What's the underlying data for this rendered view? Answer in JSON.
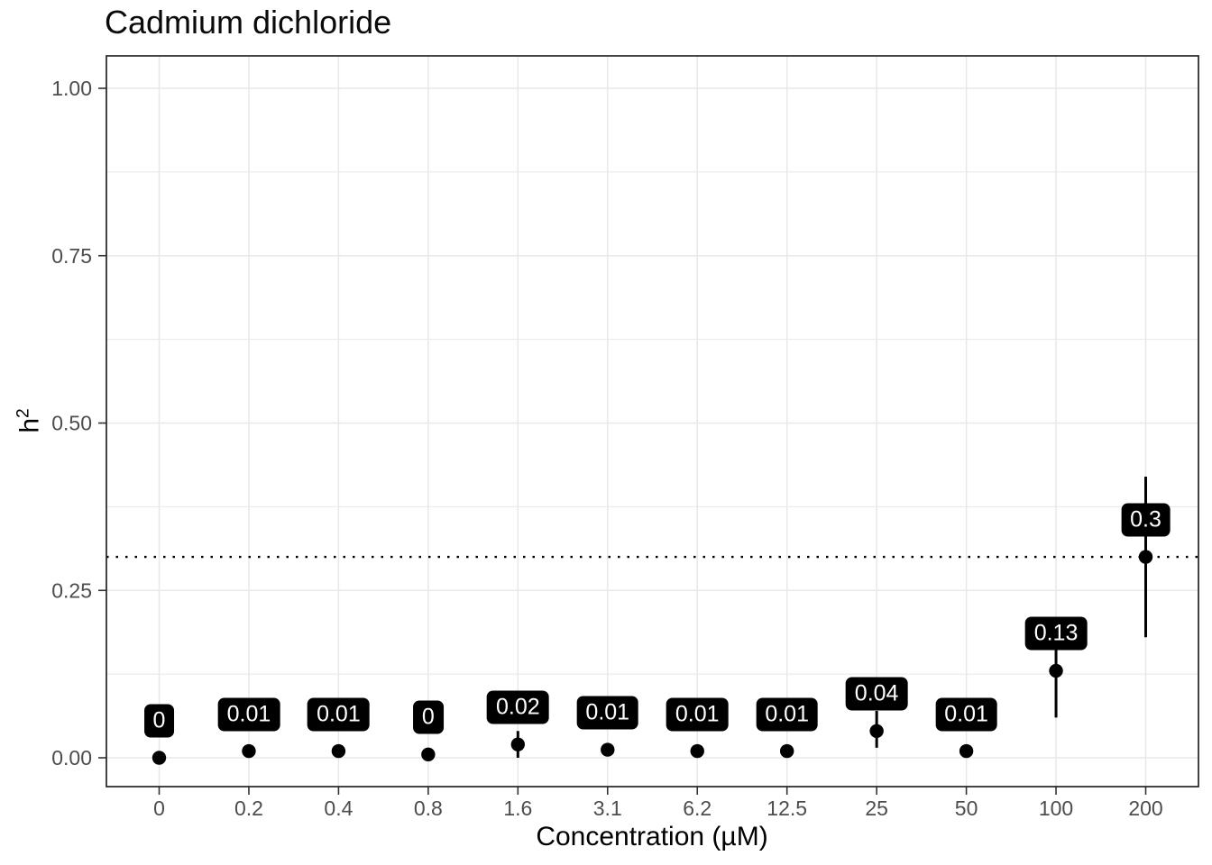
{
  "chart_data": {
    "type": "scatter",
    "title": "Cadmium dichloride",
    "xlabel": "Concentration (µM)",
    "ylabel": {
      "base": "h",
      "sup": "2"
    },
    "categories": [
      "0",
      "0.2",
      "0.4",
      "0.8",
      "1.6",
      "3.1",
      "6.2",
      "12.5",
      "25",
      "50",
      "100",
      "200"
    ],
    "values": [
      0,
      0.01,
      0.01,
      0.005,
      0.02,
      0.012,
      0.01,
      0.01,
      0.04,
      0.01,
      0.13,
      0.3
    ],
    "point_labels": [
      "0",
      "0.01",
      "0.01",
      "0",
      "0.02",
      "0.01",
      "0.01",
      "0.01",
      "0.04",
      "0.01",
      "0.13",
      "0.3"
    ],
    "error_bars": [
      {
        "category": "1.6",
        "low": 0.0,
        "high": 0.04
      },
      {
        "category": "25",
        "low": 0.015,
        "high": 0.07
      },
      {
        "category": "100",
        "low": 0.06,
        "high": 0.19
      },
      {
        "category": "200",
        "low": 0.18,
        "high": 0.42
      }
    ],
    "reference_line_y": 0.3,
    "yticks": [
      {
        "value": 0,
        "label": "0.00"
      },
      {
        "value": 0.25,
        "label": "0.25"
      },
      {
        "value": 0.5,
        "label": "0.50"
      },
      {
        "value": 0.75,
        "label": "0.75"
      },
      {
        "value": 1,
        "label": "1.00"
      }
    ],
    "ylim": [
      -0.045,
      1.05
    ],
    "grid": {
      "horizontal_minor_step": 0.125,
      "vertical": "one line per category",
      "on": true
    },
    "legend": "none"
  },
  "colors": {
    "background": "#ffffff",
    "panel_border": "#242424",
    "grid": "#e8e8e8",
    "tick": "#333333",
    "tick_label": "#4d4d4d",
    "axis_title": "#000000",
    "title": "#0a0a0a",
    "point": "#000000",
    "error_bar": "#000000",
    "reference_line": "#000000",
    "label_bg": "#000000",
    "label_text": "#ffffff"
  }
}
